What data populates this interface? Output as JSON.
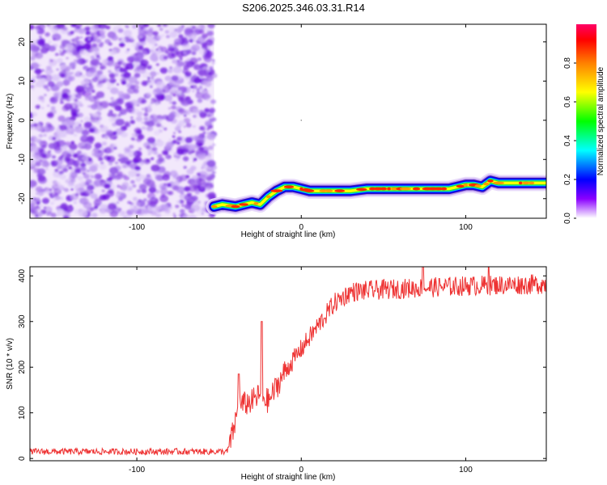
{
  "title": "S206.2025.346.03.31.R14",
  "colors": {
    "signal": "#ee3333",
    "axis": "#000000",
    "noise": "#7a2be0"
  },
  "chart_data": [
    {
      "type": "heatmap",
      "xlabel": "Height of straight line (km)",
      "ylabel": "Frequency (Hz)",
      "xlim": [
        -165,
        149
      ],
      "ylim": [
        -25,
        24.5
      ],
      "xticks": [
        -100,
        0,
        100
      ],
      "yticks": [
        20,
        10,
        0,
        -10,
        -20
      ],
      "colorbar": {
        "label": "Normalized spectral amplitude",
        "range": [
          0,
          1
        ],
        "ticks": [
          "0.0",
          "0.2",
          "0.4",
          "0.6",
          "0.8"
        ]
      },
      "noise_region_x": [
        -165,
        -53
      ],
      "track": {
        "x": [
          -53,
          -48,
          -40,
          -35,
          -30,
          -25,
          -20,
          -15,
          -10,
          -5,
          0,
          5,
          10,
          20,
          30,
          40,
          50,
          60,
          70,
          80,
          90,
          100,
          105,
          110,
          115,
          120,
          125,
          130,
          140,
          149
        ],
        "freq": [
          -22,
          -21.5,
          -22,
          -21.5,
          -21,
          -21.5,
          -19.5,
          -18,
          -17,
          -17,
          -17.5,
          -18,
          -18,
          -18,
          -18,
          -17.5,
          -17.5,
          -17.5,
          -17.5,
          -17.5,
          -17.5,
          -16.5,
          -16.5,
          -17,
          -15.5,
          -16,
          -16,
          -16,
          -16,
          -16
        ]
      }
    },
    {
      "type": "line",
      "xlabel": "Height of straight line (km)",
      "ylabel": "SNR (10 * v/v)",
      "xlim": [
        -165,
        149
      ],
      "ylim": [
        -5,
        420
      ],
      "xticks": [
        -100,
        0,
        100
      ],
      "yticks": [
        0,
        100,
        200,
        300,
        400
      ],
      "series": [
        {
          "trend": {
            "x": [
              -165,
              -45,
              -42,
              -38,
              -30,
              -25,
              -20,
              -10,
              0,
              10,
              20,
              30,
              50,
              80,
              100,
              120,
              149
            ],
            "y": [
              15,
              15,
              50,
              115,
              125,
              140,
              125,
              190,
              240,
              290,
              340,
              365,
              370,
              375,
              378,
              380,
              382
            ]
          },
          "spikes": [
            {
              "x": -38,
              "y": 185
            },
            {
              "x": -24,
              "y": 300
            },
            {
              "x": 74,
              "y": 420
            },
            {
              "x": 114,
              "y": 420
            },
            {
              "x": 103,
              "y": 395
            }
          ]
        }
      ]
    }
  ]
}
